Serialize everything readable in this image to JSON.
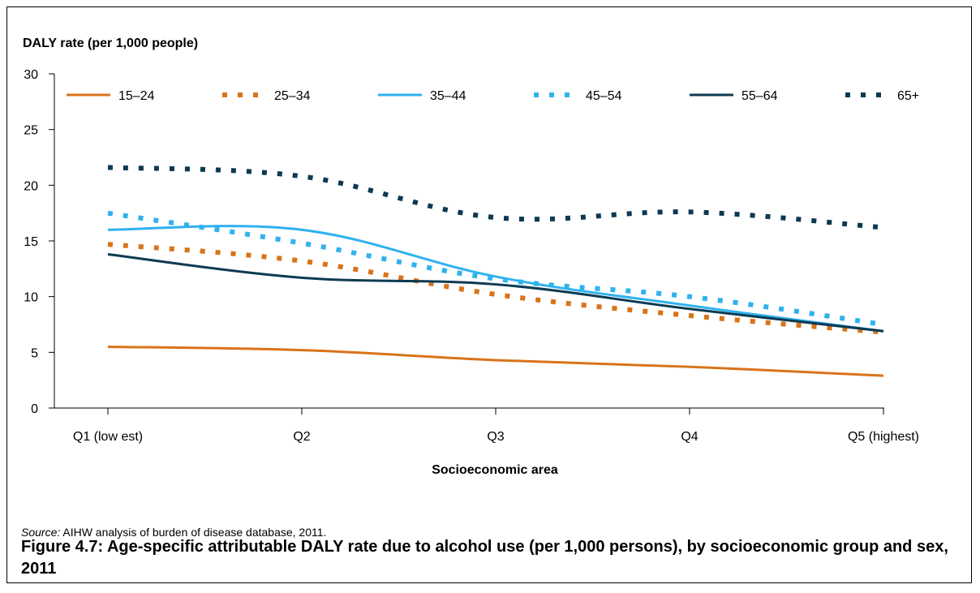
{
  "chart_data": {
    "type": "line",
    "ylabel": "DALY rate (per 1,000 people)",
    "xlabel": "Socioeconomic area",
    "categories": [
      "Q1 (low est)",
      "Q2",
      "Q3",
      "Q4",
      "Q5 (highest)"
    ],
    "ylim": [
      0,
      30
    ],
    "yticks": [
      0,
      5,
      10,
      15,
      20,
      25,
      30
    ],
    "legend_position": "top-left",
    "grid": false,
    "series": [
      {
        "name": "15–24",
        "values": [
          5.5,
          5.2,
          4.3,
          3.7,
          2.9
        ],
        "color": "#D9731A",
        "style": "solid"
      },
      {
        "name": "25–34",
        "values": [
          14.7,
          13.2,
          10.2,
          8.3,
          6.8
        ],
        "color": "#D9731A",
        "style": "dotted"
      },
      {
        "name": "35–44",
        "values": [
          16.0,
          16.0,
          11.8,
          9.2,
          6.9
        ],
        "color": "#2FB2EE",
        "style": "solid"
      },
      {
        "name": "45–54",
        "values": [
          17.5,
          14.8,
          11.6,
          10.0,
          7.5
        ],
        "color": "#2FB2EE",
        "style": "dotted"
      },
      {
        "name": "55–64",
        "values": [
          13.8,
          11.7,
          11.1,
          8.9,
          6.9
        ],
        "color": "#0D3A52",
        "style": "solid"
      },
      {
        "name": "65+",
        "values": [
          21.6,
          20.8,
          17.1,
          17.6,
          16.2
        ],
        "color": "#0D3A52",
        "style": "dotted"
      }
    ]
  },
  "source": {
    "prefix": "Source:",
    "text": " AIHW analysis of burden of disease database, 2011."
  },
  "caption": "Figure 4.7: Age-specific attributable DALY rate due to alcohol use (per 1,000 persons), by socioeconomic group and sex, 2011"
}
